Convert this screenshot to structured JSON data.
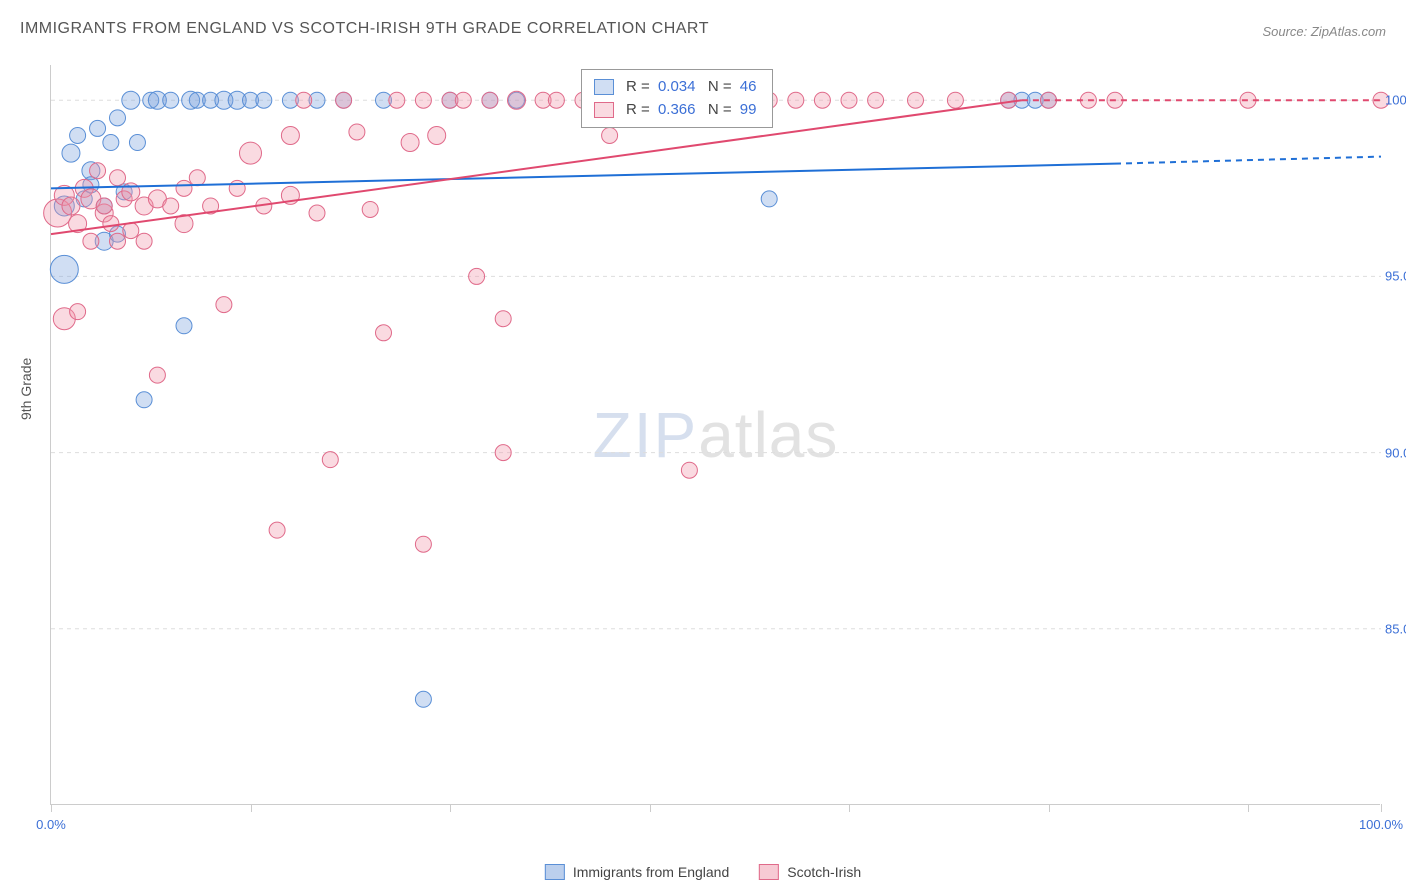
{
  "title": "IMMIGRANTS FROM ENGLAND VS SCOTCH-IRISH 9TH GRADE CORRELATION CHART",
  "source": "Source: ZipAtlas.com",
  "y_axis_label": "9th Grade",
  "watermark": {
    "part1": "ZIP",
    "part2": "atlas"
  },
  "chart": {
    "type": "scatter",
    "background_color": "#ffffff",
    "grid_color": "#dddddd",
    "axis_color": "#cccccc",
    "xlim": [
      0,
      100
    ],
    "ylim": [
      80,
      101
    ],
    "x_ticks": [
      0,
      15,
      30,
      45,
      60,
      75,
      90,
      100
    ],
    "x_tick_labels": {
      "0": "0.0%",
      "100": "100.0%"
    },
    "y_ticks": [
      85,
      90,
      95,
      100
    ],
    "y_tick_labels": {
      "85": "85.0%",
      "90": "90.0%",
      "95": "95.0%",
      "100": "100.0%"
    },
    "marker_default_radius": 8,
    "marker_stroke_width": 1,
    "trend_line_width": 2
  },
  "series": [
    {
      "key": "england",
      "label": "Immigrants from England",
      "fill": "rgba(120,160,220,0.35)",
      "stroke": "#5a8fd6",
      "trend_color": "#1f6fd6",
      "r_label": "R = ",
      "r_value": "0.034",
      "n_label": "N = ",
      "n_value": "46",
      "trend": {
        "x1": 0,
        "y1": 97.5,
        "x2": 80,
        "y2": 98.2,
        "dash_x2": 100,
        "dash_y2": 98.4
      },
      "points": [
        {
          "x": 1,
          "y": 97,
          "r": 10
        },
        {
          "x": 1,
          "y": 95.2,
          "r": 14
        },
        {
          "x": 1.5,
          "y": 98.5,
          "r": 9
        },
        {
          "x": 2,
          "y": 99,
          "r": 8
        },
        {
          "x": 2.5,
          "y": 97.2,
          "r": 8
        },
        {
          "x": 3,
          "y": 98.0,
          "r": 9
        },
        {
          "x": 3,
          "y": 97.6,
          "r": 8
        },
        {
          "x": 3.5,
          "y": 99.2,
          "r": 8
        },
        {
          "x": 4,
          "y": 96.0,
          "r": 9
        },
        {
          "x": 4,
          "y": 97.0,
          "r": 8
        },
        {
          "x": 4.5,
          "y": 98.8,
          "r": 8
        },
        {
          "x": 5,
          "y": 99.5,
          "r": 8
        },
        {
          "x": 5,
          "y": 96.2,
          "r": 8
        },
        {
          "x": 5.5,
          "y": 97.4,
          "r": 8
        },
        {
          "x": 6,
          "y": 100,
          "r": 9
        },
        {
          "x": 6.5,
          "y": 98.8,
          "r": 8
        },
        {
          "x": 7,
          "y": 91.5,
          "r": 8
        },
        {
          "x": 7.5,
          "y": 100,
          "r": 8
        },
        {
          "x": 8,
          "y": 100,
          "r": 9
        },
        {
          "x": 9,
          "y": 100,
          "r": 8
        },
        {
          "x": 10,
          "y": 93.6,
          "r": 8
        },
        {
          "x": 10.5,
          "y": 100,
          "r": 9
        },
        {
          "x": 11,
          "y": 100,
          "r": 8
        },
        {
          "x": 12,
          "y": 100,
          "r": 8
        },
        {
          "x": 13,
          "y": 100,
          "r": 9
        },
        {
          "x": 14,
          "y": 100,
          "r": 9
        },
        {
          "x": 15,
          "y": 100,
          "r": 8
        },
        {
          "x": 16,
          "y": 100,
          "r": 8
        },
        {
          "x": 18,
          "y": 100,
          "r": 8
        },
        {
          "x": 20,
          "y": 100,
          "r": 8
        },
        {
          "x": 22,
          "y": 100,
          "r": 8
        },
        {
          "x": 25,
          "y": 100,
          "r": 8
        },
        {
          "x": 28,
          "y": 83.0,
          "r": 8
        },
        {
          "x": 30,
          "y": 100,
          "r": 8
        },
        {
          "x": 33,
          "y": 100,
          "r": 8
        },
        {
          "x": 35,
          "y": 100,
          "r": 8
        },
        {
          "x": 54,
          "y": 97.2,
          "r": 8
        },
        {
          "x": 72,
          "y": 100,
          "r": 8
        },
        {
          "x": 73,
          "y": 100,
          "r": 8
        },
        {
          "x": 74,
          "y": 100,
          "r": 8
        },
        {
          "x": 75,
          "y": 100,
          "r": 8
        }
      ]
    },
    {
      "key": "scotch_irish",
      "label": "Scotch-Irish",
      "fill": "rgba(240,150,170,0.35)",
      "stroke": "#e06a8a",
      "trend_color": "#e0496f",
      "r_label": "R = ",
      "r_value": "0.366",
      "n_label": "N = ",
      "n_value": "99",
      "trend": {
        "x1": 0,
        "y1": 96.2,
        "x2": 73,
        "y2": 100,
        "dash_x2": 100,
        "dash_y2": 100
      },
      "points": [
        {
          "x": 0.5,
          "y": 96.8,
          "r": 14
        },
        {
          "x": 1,
          "y": 97.3,
          "r": 10
        },
        {
          "x": 1,
          "y": 93.8,
          "r": 11
        },
        {
          "x": 1.5,
          "y": 97.0,
          "r": 9
        },
        {
          "x": 2,
          "y": 96.5,
          "r": 9
        },
        {
          "x": 2,
          "y": 94.0,
          "r": 8
        },
        {
          "x": 2.5,
          "y": 97.5,
          "r": 9
        },
        {
          "x": 3,
          "y": 96.0,
          "r": 8
        },
        {
          "x": 3,
          "y": 97.2,
          "r": 10
        },
        {
          "x": 3.5,
          "y": 98.0,
          "r": 8
        },
        {
          "x": 4,
          "y": 96.8,
          "r": 9
        },
        {
          "x": 4,
          "y": 97.0,
          "r": 8
        },
        {
          "x": 4.5,
          "y": 96.5,
          "r": 8
        },
        {
          "x": 5,
          "y": 97.8,
          "r": 8
        },
        {
          "x": 5,
          "y": 96.0,
          "r": 8
        },
        {
          "x": 5.5,
          "y": 97.2,
          "r": 8
        },
        {
          "x": 6,
          "y": 97.4,
          "r": 9
        },
        {
          "x": 6,
          "y": 96.3,
          "r": 8
        },
        {
          "x": 7,
          "y": 97.0,
          "r": 9
        },
        {
          "x": 7,
          "y": 96.0,
          "r": 8
        },
        {
          "x": 8,
          "y": 97.2,
          "r": 9
        },
        {
          "x": 8,
          "y": 92.2,
          "r": 8
        },
        {
          "x": 9,
          "y": 97.0,
          "r": 8
        },
        {
          "x": 10,
          "y": 97.5,
          "r": 8
        },
        {
          "x": 10,
          "y": 96.5,
          "r": 9
        },
        {
          "x": 11,
          "y": 97.8,
          "r": 8
        },
        {
          "x": 12,
          "y": 97.0,
          "r": 8
        },
        {
          "x": 13,
          "y": 94.2,
          "r": 8
        },
        {
          "x": 14,
          "y": 97.5,
          "r": 8
        },
        {
          "x": 15,
          "y": 98.5,
          "r": 11
        },
        {
          "x": 16,
          "y": 97.0,
          "r": 8
        },
        {
          "x": 17,
          "y": 87.8,
          "r": 8
        },
        {
          "x": 18,
          "y": 97.3,
          "r": 9
        },
        {
          "x": 18,
          "y": 99.0,
          "r": 9
        },
        {
          "x": 19,
          "y": 100,
          "r": 8
        },
        {
          "x": 20,
          "y": 96.8,
          "r": 8
        },
        {
          "x": 21,
          "y": 89.8,
          "r": 8
        },
        {
          "x": 22,
          "y": 100,
          "r": 8
        },
        {
          "x": 23,
          "y": 99.1,
          "r": 8
        },
        {
          "x": 24,
          "y": 96.9,
          "r": 8
        },
        {
          "x": 25,
          "y": 93.4,
          "r": 8
        },
        {
          "x": 26,
          "y": 100,
          "r": 8
        },
        {
          "x": 27,
          "y": 98.8,
          "r": 9
        },
        {
          "x": 28,
          "y": 100,
          "r": 8
        },
        {
          "x": 28,
          "y": 87.4,
          "r": 8
        },
        {
          "x": 29,
          "y": 99.0,
          "r": 9
        },
        {
          "x": 30,
          "y": 100,
          "r": 8
        },
        {
          "x": 31,
          "y": 100,
          "r": 8
        },
        {
          "x": 32,
          "y": 95.0,
          "r": 8
        },
        {
          "x": 33,
          "y": 100,
          "r": 8
        },
        {
          "x": 34,
          "y": 90.0,
          "r": 8
        },
        {
          "x": 34,
          "y": 93.8,
          "r": 8
        },
        {
          "x": 35,
          "y": 100,
          "r": 9
        },
        {
          "x": 37,
          "y": 100,
          "r": 8
        },
        {
          "x": 38,
          "y": 100,
          "r": 8
        },
        {
          "x": 40,
          "y": 100,
          "r": 8
        },
        {
          "x": 41,
          "y": 100,
          "r": 8
        },
        {
          "x": 42,
          "y": 99.0,
          "r": 8
        },
        {
          "x": 43,
          "y": 100,
          "r": 8
        },
        {
          "x": 44,
          "y": 100,
          "r": 8
        },
        {
          "x": 45,
          "y": 100,
          "r": 8
        },
        {
          "x": 47,
          "y": 100,
          "r": 8
        },
        {
          "x": 48,
          "y": 89.5,
          "r": 8
        },
        {
          "x": 49,
          "y": 100,
          "r": 8
        },
        {
          "x": 50,
          "y": 100,
          "r": 8
        },
        {
          "x": 52,
          "y": 100,
          "r": 8
        },
        {
          "x": 54,
          "y": 100,
          "r": 8
        },
        {
          "x": 56,
          "y": 100,
          "r": 8
        },
        {
          "x": 58,
          "y": 100,
          "r": 8
        },
        {
          "x": 60,
          "y": 100,
          "r": 8
        },
        {
          "x": 62,
          "y": 100,
          "r": 8
        },
        {
          "x": 65,
          "y": 100,
          "r": 8
        },
        {
          "x": 68,
          "y": 100,
          "r": 8
        },
        {
          "x": 72,
          "y": 100,
          "r": 8
        },
        {
          "x": 75,
          "y": 100,
          "r": 8
        },
        {
          "x": 78,
          "y": 100,
          "r": 8
        },
        {
          "x": 80,
          "y": 100,
          "r": 8
        },
        {
          "x": 90,
          "y": 100,
          "r": 8
        },
        {
          "x": 100,
          "y": 100,
          "r": 8
        }
      ]
    }
  ],
  "legend": {
    "items": [
      {
        "label": "Immigrants from England",
        "fill": "rgba(120,160,220,0.5)",
        "stroke": "#5a8fd6"
      },
      {
        "label": "Scotch-Irish",
        "fill": "rgba(240,150,170,0.5)",
        "stroke": "#e06a8a"
      }
    ]
  }
}
